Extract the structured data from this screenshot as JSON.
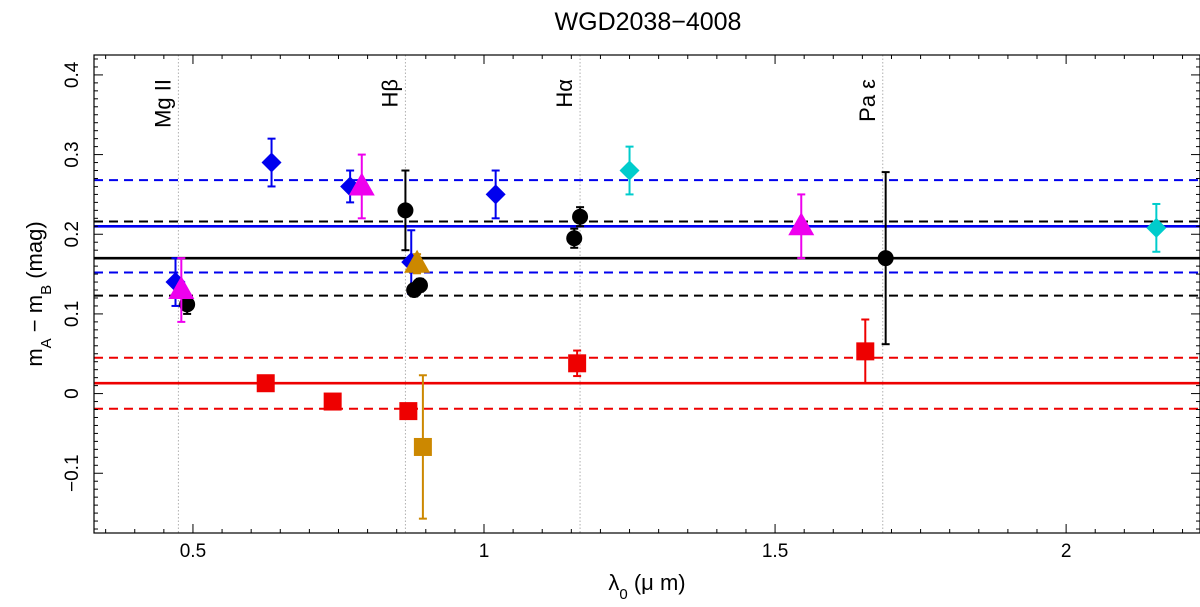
{
  "chart_data": {
    "type": "scatter",
    "title": "WGD2038−4008",
    "xlabel": {
      "main": "λ",
      "sub": "0",
      "rest": " (μ m)"
    },
    "ylabel": {
      "main": "m",
      "sub1": "A",
      "mid": " − m",
      "sub2": "B",
      "rest": " (mag)"
    },
    "xlim": [
      0.33,
      2.23
    ],
    "ylim": [
      -0.175,
      0.425
    ],
    "x_ticks": [
      0.5,
      1,
      1.5,
      2
    ],
    "x_tick_labels": [
      "0.5",
      "1",
      "1.5",
      "2"
    ],
    "y_ticks": [
      -0.1,
      0,
      0.1,
      0.2,
      0.3,
      0.4
    ],
    "y_tick_labels": [
      "−0.1",
      "0",
      "0.1",
      "0.2",
      "0.3",
      "0.4"
    ],
    "line_labels": [
      {
        "x": 0.475,
        "label": "Mg II"
      },
      {
        "x": 0.865,
        "label": "Hβ"
      },
      {
        "x": 1.165,
        "label": "Hα"
      },
      {
        "x": 1.685,
        "label": "Pa ε"
      }
    ],
    "colors": {
      "blue": "#0000ee",
      "black": "#000000",
      "red": "#ee0000",
      "magenta": "#ee00ee",
      "cyan": "#00cccc",
      "orange": "#cc8800",
      "vline": "#b0b0b0"
    },
    "hlines": [
      {
        "y": 0.268,
        "color": "blue",
        "style": "dashed"
      },
      {
        "y": 0.216,
        "color": "black",
        "style": "dashed"
      },
      {
        "y": 0.21,
        "color": "blue",
        "style": "solid"
      },
      {
        "y": 0.17,
        "color": "black",
        "style": "solid"
      },
      {
        "y": 0.152,
        "color": "blue",
        "style": "dashed"
      },
      {
        "y": 0.123,
        "color": "black",
        "style": "dashed"
      },
      {
        "y": 0.045,
        "color": "red",
        "style": "dashed"
      },
      {
        "y": 0.013,
        "color": "red",
        "style": "solid"
      },
      {
        "y": -0.019,
        "color": "red",
        "style": "dashed"
      }
    ],
    "series": [
      {
        "name": "blue diamonds",
        "marker": "diamond",
        "color": "blue",
        "points": [
          {
            "x": 0.47,
            "y": 0.14,
            "err": 0.03
          },
          {
            "x": 0.635,
            "y": 0.29,
            "err": 0.03
          },
          {
            "x": 0.77,
            "y": 0.26,
            "err": 0.02
          },
          {
            "x": 0.875,
            "y": 0.165,
            "err": 0.04
          },
          {
            "x": 1.02,
            "y": 0.25,
            "err": 0.03
          }
        ]
      },
      {
        "name": "black circles",
        "marker": "circle",
        "color": "black",
        "points": [
          {
            "x": 0.49,
            "y": 0.112,
            "err": 0.012
          },
          {
            "x": 0.865,
            "y": 0.23,
            "err": 0.05
          },
          {
            "x": 0.88,
            "y": 0.13,
            "err": 0.008
          },
          {
            "x": 0.89,
            "y": 0.136,
            "err": 0.008
          },
          {
            "x": 1.155,
            "y": 0.195,
            "err": 0.012
          },
          {
            "x": 1.165,
            "y": 0.222,
            "err": 0.012
          },
          {
            "x": 1.69,
            "y": 0.17,
            "err": 0.108
          }
        ]
      },
      {
        "name": "magenta triangles",
        "marker": "triangle",
        "color": "magenta",
        "points": [
          {
            "x": 0.48,
            "y": 0.13,
            "err": 0.04
          },
          {
            "x": 0.79,
            "y": 0.26,
            "err": 0.04
          },
          {
            "x": 1.545,
            "y": 0.21,
            "err": 0.04
          }
        ]
      },
      {
        "name": "cyan diamonds",
        "marker": "diamond",
        "color": "cyan",
        "points": [
          {
            "x": 1.25,
            "y": 0.28,
            "err": 0.03
          },
          {
            "x": 2.155,
            "y": 0.208,
            "err": 0.03
          }
        ]
      },
      {
        "name": "orange points",
        "marker": "mixed",
        "color": "orange",
        "points": [
          {
            "x": 0.885,
            "y": 0.163,
            "err": 0.012,
            "marker": "triangle"
          },
          {
            "x": 0.895,
            "y": -0.067,
            "err": 0.09,
            "marker": "square"
          }
        ]
      },
      {
        "name": "red squares",
        "marker": "square",
        "color": "red",
        "points": [
          {
            "x": 0.625,
            "y": 0.013,
            "err": 0
          },
          {
            "x": 0.74,
            "y": -0.01,
            "err": 0
          },
          {
            "x": 0.87,
            "y": -0.022,
            "err": 0
          },
          {
            "x": 1.16,
            "y": 0.038,
            "err": 0.016
          },
          {
            "x": 1.655,
            "y": 0.053,
            "err": 0.04
          }
        ]
      }
    ]
  }
}
